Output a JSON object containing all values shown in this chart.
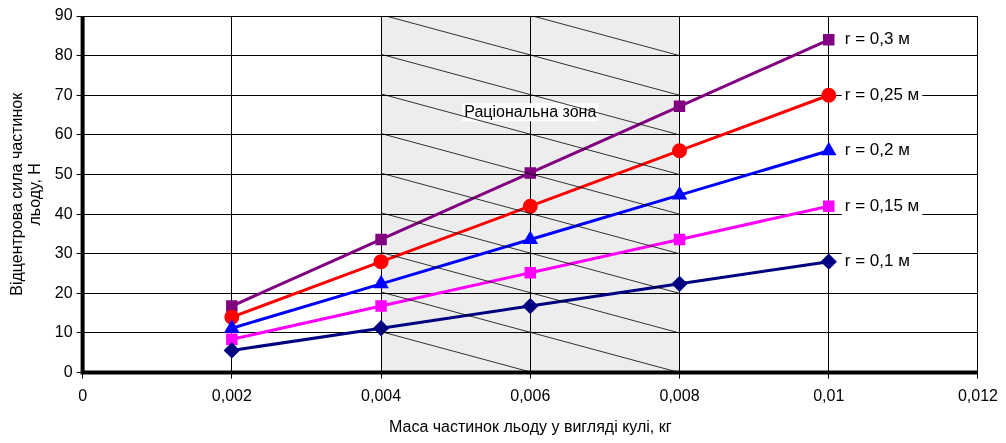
{
  "chart_data": {
    "type": "line",
    "xlabel": "Маса частинок льоду у вигляді кулі, кг",
    "ylabel": "Відцентрова сила частинок\nльоду, Н",
    "x": [
      0.002,
      0.004,
      0.006,
      0.008,
      0.01
    ],
    "series": [
      {
        "name": "r = 0,1 м",
        "color": "#000080",
        "marker": "diamond",
        "values": [
          5.6,
          11.2,
          16.8,
          22.4,
          28
        ]
      },
      {
        "name": "r = 0,15 м",
        "color": "#ff00ff",
        "marker": "square",
        "values": [
          8.4,
          16.8,
          25.2,
          33.6,
          42
        ]
      },
      {
        "name": "r = 0,2 м",
        "color": "#0000ff",
        "marker": "triangle",
        "values": [
          11.2,
          22.4,
          33.6,
          44.8,
          56
        ]
      },
      {
        "name": "r = 0,25 м",
        "color": "#ff0000",
        "marker": "circle",
        "values": [
          14,
          28,
          42,
          56,
          70
        ]
      },
      {
        "name": "r = 0,3 м",
        "color": "#800080",
        "marker": "square",
        "values": [
          16.8,
          33.6,
          50.4,
          67.2,
          84
        ]
      }
    ],
    "xlim": [
      0,
      0.012
    ],
    "xticks": [
      0,
      {
        "value": 0.002,
        "label": "0,002"
      },
      {
        "value": 0.004,
        "label": "0,004"
      },
      {
        "value": 0.006,
        "label": "0,006"
      },
      {
        "value": 0.008,
        "label": "0,008"
      },
      {
        "value": 0.01,
        "label": "0,01"
      },
      {
        "value": 0.012,
        "label": "0,012"
      }
    ],
    "ylim": [
      0,
      90
    ],
    "yticks": [
      0,
      10,
      20,
      30,
      40,
      50,
      60,
      70,
      80,
      90
    ],
    "bands": [
      {
        "axis": "x",
        "from": 0.004,
        "to": 0.008,
        "label": "Раціональна зона"
      }
    ],
    "grid": true,
    "legend": false,
    "line_style": "solid"
  }
}
